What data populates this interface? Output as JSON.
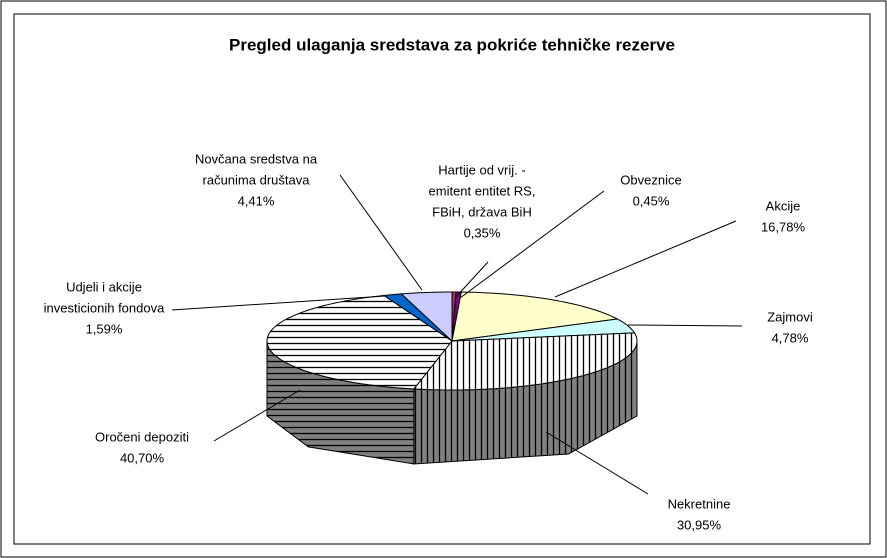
{
  "chart_data": {
    "type": "pie",
    "title": "Pregled ulaganja sredstava za pokriće tehničke rezerve",
    "categories": [
      [
        "Hartije od vrij. -",
        "emitent entitet RS,",
        "FBiH, država BiH"
      ],
      [
        "Obveznice"
      ],
      [
        "Akcije"
      ],
      [
        "Zajmovi"
      ],
      [
        "Nekretnine"
      ],
      [
        "Oročeni depoziti"
      ],
      [
        "Udjeli i akcije",
        "investicionih fondova"
      ],
      [
        "Novčana sredstva na",
        "računima društava"
      ]
    ],
    "values": [
      0.35,
      0.45,
      16.78,
      4.78,
      30.95,
      40.7,
      1.59,
      4.41
    ],
    "value_labels": [
      "0,35%",
      "0,45%",
      "16,78%",
      "4,78%",
      "30,95%",
      "40,70%",
      "1,59%",
      "4,41%"
    ],
    "colors": [
      "#993366",
      "#800080",
      "#FFFFCC",
      "#CCFFFF",
      "#FFFFFF",
      "#FFFFFF",
      "#0066CC",
      "#CCCCFF"
    ],
    "patterns": [
      null,
      null,
      null,
      null,
      "vertical",
      "horizontal",
      null,
      null
    ]
  }
}
